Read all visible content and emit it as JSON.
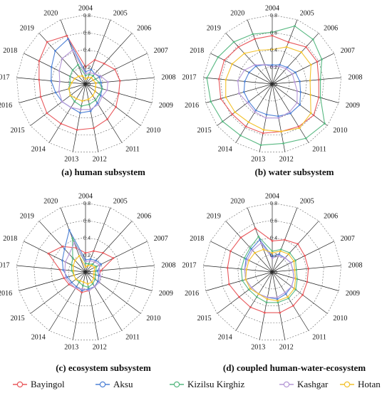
{
  "chart_data": [
    {
      "type": "radar",
      "title": "(a) human subsystem",
      "categories": [
        "2004",
        "2005",
        "2006",
        "2007",
        "2008",
        "2009",
        "2010",
        "2011",
        "2012",
        "2013",
        "2014",
        "2015",
        "2016",
        "2017",
        "2018",
        "2019",
        "2020"
      ],
      "rlim": [
        0,
        0.8
      ],
      "rticks": [
        "0.0",
        "0.2",
        "0.4",
        "0.6",
        "0.8"
      ],
      "series": [
        {
          "name": "Bayingol",
          "values": [
            0.2,
            0.3,
            0.32,
            0.38,
            0.4,
            0.4,
            0.44,
            0.48,
            0.52,
            0.54,
            0.54,
            0.56,
            0.54,
            0.54,
            0.6,
            0.66,
            0.6
          ]
        },
        {
          "name": "Aksu",
          "values": [
            0.14,
            0.18,
            0.16,
            0.18,
            0.18,
            0.2,
            0.22,
            0.26,
            0.32,
            0.34,
            0.32,
            0.34,
            0.36,
            0.4,
            0.44,
            0.52,
            0.56
          ]
        },
        {
          "name": "Kizilsu Kirghiz",
          "values": [
            0.1,
            0.12,
            0.13,
            0.13,
            0.16,
            0.2,
            0.2,
            0.22,
            0.24,
            0.26,
            0.24,
            0.22,
            0.2,
            0.18,
            0.2,
            0.22,
            0.24
          ]
        },
        {
          "name": "Kashgar",
          "values": [
            0.12,
            0.14,
            0.16,
            0.2,
            0.26,
            0.26,
            0.24,
            0.28,
            0.3,
            0.3,
            0.32,
            0.34,
            0.32,
            0.3,
            0.34,
            0.4,
            0.42
          ]
        },
        {
          "name": "Hotan",
          "values": [
            0.06,
            0.08,
            0.1,
            0.1,
            0.12,
            0.12,
            0.14,
            0.16,
            0.18,
            0.2,
            0.2,
            0.22,
            0.2,
            0.16,
            0.14,
            0.12,
            0.1
          ]
        }
      ]
    },
    {
      "type": "radar",
      "title": "(b) water subsystem",
      "categories": [
        "2004",
        "2005",
        "2006",
        "2007",
        "2008",
        "2009",
        "2010",
        "2011",
        "2012",
        "2013",
        "2014",
        "2015",
        "2016",
        "2017",
        "2018",
        "2019",
        "2020"
      ],
      "rlim": [
        0,
        0.8
      ],
      "rticks": [
        "0.0",
        "0.2",
        "0.4",
        "0.6",
        "0.8"
      ],
      "series": [
        {
          "name": "Bayingol",
          "values": [
            0.56,
            0.52,
            0.58,
            0.58,
            0.54,
            0.56,
            0.6,
            0.58,
            0.56,
            0.58,
            0.58,
            0.58,
            0.62,
            0.62,
            0.62,
            0.58,
            0.56
          ]
        },
        {
          "name": "Aksu",
          "values": [
            0.22,
            0.24,
            0.26,
            0.3,
            0.32,
            0.34,
            0.4,
            0.4,
            0.38,
            0.36,
            0.36,
            0.34,
            0.34,
            0.32,
            0.3,
            0.28,
            0.24
          ]
        },
        {
          "name": "Kizilsu Kirghiz",
          "values": [
            0.6,
            0.72,
            0.7,
            0.64,
            0.56,
            0.58,
            0.76,
            0.74,
            0.7,
            0.72,
            0.7,
            0.72,
            0.74,
            0.76,
            0.7,
            0.66,
            0.62
          ]
        },
        {
          "name": "Kashgar",
          "values": [
            0.2,
            0.22,
            0.24,
            0.26,
            0.26,
            0.3,
            0.36,
            0.38,
            0.4,
            0.4,
            0.38,
            0.36,
            0.4,
            0.4,
            0.36,
            0.3,
            0.24
          ]
        },
        {
          "name": "Hotan",
          "values": [
            0.4,
            0.46,
            0.5,
            0.5,
            0.44,
            0.46,
            0.56,
            0.6,
            0.56,
            0.54,
            0.52,
            0.54,
            0.56,
            0.54,
            0.52,
            0.48,
            0.42
          ]
        }
      ]
    },
    {
      "type": "radar",
      "title": "(c) ecosystem subsystem",
      "categories": [
        "2004",
        "2005",
        "2006",
        "2007",
        "2008",
        "2009",
        "2010",
        "2011",
        "2012",
        "2013",
        "2014",
        "2015",
        "2016",
        "2017",
        "2018",
        "2019",
        "2020"
      ],
      "rlim": [
        0,
        0.8
      ],
      "rticks": [
        "0.0",
        "0.2",
        "0.4",
        "0.6",
        "0.8"
      ],
      "series": [
        {
          "name": "Bayingol",
          "values": [
            0.22,
            0.26,
            0.3,
            0.36,
            0.18,
            0.16,
            0.18,
            0.2,
            0.22,
            0.24,
            0.22,
            0.24,
            0.26,
            0.3,
            0.48,
            0.4,
            0.3
          ]
        },
        {
          "name": "Aksu",
          "values": [
            0.14,
            0.16,
            0.18,
            0.2,
            0.14,
            0.16,
            0.18,
            0.2,
            0.2,
            0.22,
            0.2,
            0.2,
            0.22,
            0.26,
            0.3,
            0.36,
            0.52
          ]
        },
        {
          "name": "Kizilsu Kirghiz",
          "values": [
            0.1,
            0.1,
            0.12,
            0.14,
            0.12,
            0.12,
            0.14,
            0.16,
            0.18,
            0.16,
            0.14,
            0.14,
            0.14,
            0.16,
            0.18,
            0.22,
            0.42
          ]
        },
        {
          "name": "Kashgar",
          "values": [
            0.12,
            0.14,
            0.16,
            0.18,
            0.16,
            0.18,
            0.2,
            0.2,
            0.22,
            0.2,
            0.22,
            0.22,
            0.24,
            0.24,
            0.26,
            0.28,
            0.36
          ]
        },
        {
          "name": "Hotan",
          "values": [
            0.06,
            0.08,
            0.1,
            0.12,
            0.1,
            0.1,
            0.12,
            0.14,
            0.14,
            0.12,
            0.12,
            0.14,
            0.14,
            0.14,
            0.16,
            0.18,
            0.2
          ]
        }
      ]
    },
    {
      "type": "radar",
      "title": "(d) coupled human-water-ecosystem",
      "categories": [
        "2004",
        "2005",
        "2006",
        "2007",
        "2008",
        "2009",
        "2010",
        "2011",
        "2012",
        "2013",
        "2014",
        "2015",
        "2016",
        "2017",
        "2018",
        "2019",
        "2020"
      ],
      "rlim": [
        0,
        0.8
      ],
      "rticks": [
        "0.0",
        "0.2",
        "0.4",
        "0.6",
        "0.8"
      ],
      "series": [
        {
          "name": "Bayingol",
          "values": [
            0.36,
            0.4,
            0.44,
            0.42,
            0.42,
            0.42,
            0.44,
            0.46,
            0.48,
            0.48,
            0.48,
            0.48,
            0.52,
            0.52,
            0.54,
            0.54,
            0.54
          ]
        },
        {
          "name": "Aksu",
          "values": [
            0.18,
            0.22,
            0.22,
            0.24,
            0.24,
            0.26,
            0.28,
            0.3,
            0.32,
            0.3,
            0.3,
            0.3,
            0.32,
            0.32,
            0.34,
            0.36,
            0.4
          ]
        },
        {
          "name": "Kizilsu Kirghiz",
          "values": [
            0.24,
            0.28,
            0.3,
            0.3,
            0.28,
            0.3,
            0.34,
            0.36,
            0.36,
            0.36,
            0.34,
            0.34,
            0.36,
            0.36,
            0.36,
            0.38,
            0.44
          ]
        },
        {
          "name": "Kashgar",
          "values": [
            0.16,
            0.2,
            0.22,
            0.24,
            0.24,
            0.26,
            0.28,
            0.28,
            0.3,
            0.3,
            0.3,
            0.3,
            0.32,
            0.32,
            0.32,
            0.34,
            0.36
          ]
        },
        {
          "name": "Hotan",
          "values": [
            0.22,
            0.26,
            0.28,
            0.28,
            0.26,
            0.28,
            0.32,
            0.34,
            0.34,
            0.32,
            0.3,
            0.32,
            0.32,
            0.3,
            0.3,
            0.3,
            0.28
          ]
        }
      ]
    }
  ],
  "colors": {
    "Bayingol": "#e8585c",
    "Aksu": "#4f82d6",
    "Kizilsu Kirghiz": "#57b881",
    "Kashgar": "#b598d6",
    "Hotan": "#f2c22e"
  },
  "legend": {
    "entries": [
      "Bayingol",
      "Aksu",
      "Kizilsu Kirghiz",
      "Kashgar",
      "Hotan"
    ],
    "placement": "bottom"
  }
}
